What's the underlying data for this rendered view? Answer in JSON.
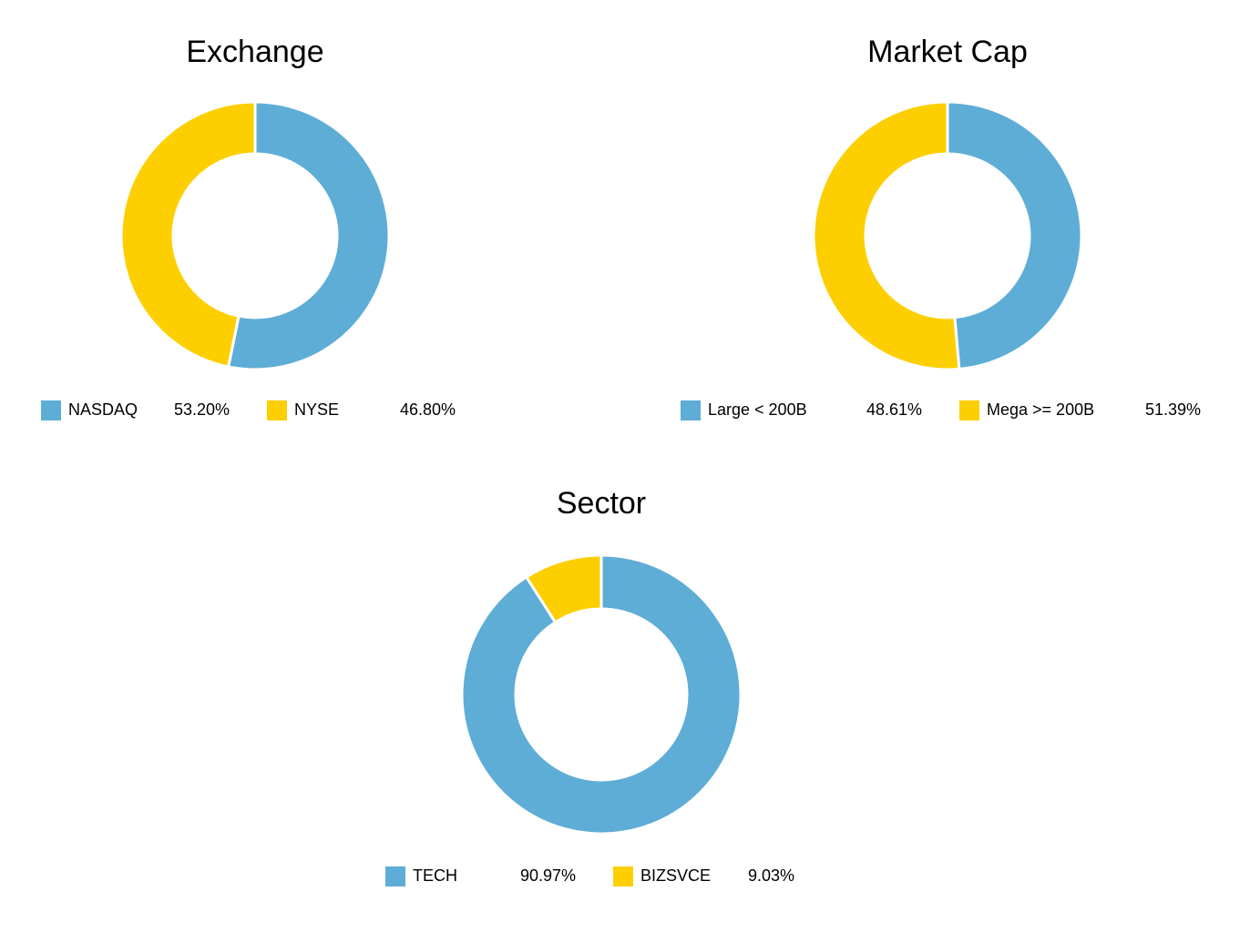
{
  "chart_data": [
    {
      "type": "donut",
      "title": "Exchange",
      "categories": [
        "NASDAQ",
        "NYSE"
      ],
      "values": [
        53.2,
        46.8
      ],
      "value_labels": [
        "53.20%",
        "46.80%"
      ],
      "colors": [
        "#5eadd6",
        "#fdcf00"
      ]
    },
    {
      "type": "donut",
      "title": "Market Cap",
      "categories": [
        "Large < 200B",
        "Mega >= 200B"
      ],
      "values": [
        48.61,
        51.39
      ],
      "value_labels": [
        "48.61%",
        "51.39%"
      ],
      "colors": [
        "#5eadd6",
        "#fdcf00"
      ]
    },
    {
      "type": "donut",
      "title": "Sector",
      "categories": [
        "TECH",
        "BIZSVCE"
      ],
      "values": [
        90.97,
        9.03
      ],
      "value_labels": [
        "90.97%",
        "9.03%"
      ],
      "colors": [
        "#5eadd6",
        "#fdcf00"
      ]
    }
  ]
}
